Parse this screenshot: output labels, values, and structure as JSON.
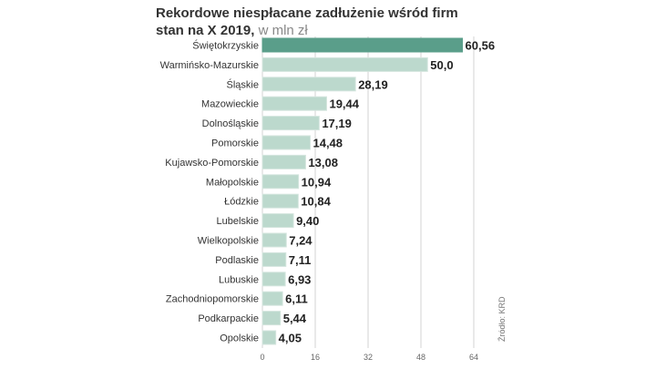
{
  "title_line1": "Rekordowe niespłacane zadłużenie wśród firm",
  "title_line2": "stan na X 2019,",
  "title_unit": " w mln zł",
  "source": "Źródło: KRD",
  "colors": {
    "highlight_bar": "#5a9e8a",
    "bar": "#bcd9cd",
    "bar_stroke": "#d4e5de",
    "grid": "#d3d3d3",
    "value_text": "#222222",
    "label_text": "#333333"
  },
  "chart_data": {
    "type": "bar",
    "orientation": "horizontal",
    "title": "Rekordowe niespłacane zadłużenie wśród firm",
    "subtitle": "stan na X 2019, w mln zł",
    "categories": [
      "Świętokrzyskie",
      "Warmińsko-Mazurskie",
      "Śląskie",
      "Mazowieckie",
      "Dolnośląskie",
      "Pomorskie",
      "Kujawsko-Pomorskie",
      "Małopolskie",
      "Łódzkie",
      "Lubelskie",
      "Wielkopolskie",
      "Podlaskie",
      "Lubuskie",
      "Zachodniopomorskie",
      "Podkarpackie",
      "Opolskie"
    ],
    "values": [
      60.56,
      50.0,
      28.19,
      19.44,
      17.19,
      14.48,
      13.08,
      10.94,
      10.84,
      9.4,
      7.24,
      7.11,
      6.93,
      6.11,
      5.44,
      4.05
    ],
    "value_labels": [
      "60,56",
      "50,0",
      "28,19",
      "19,44",
      "17,19",
      "14,48",
      "13,08",
      "10,94",
      "10,84",
      "9,40",
      "7,24",
      "7,11",
      "6,93",
      "6,11",
      "5,44",
      "4,05"
    ],
    "x_ticks": [
      "0",
      "16",
      "32",
      "48",
      "64"
    ],
    "xlim": [
      0,
      64
    ],
    "grid": true,
    "highlight_index": 0
  }
}
